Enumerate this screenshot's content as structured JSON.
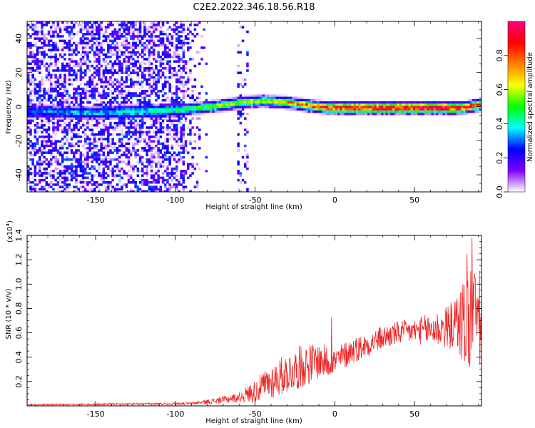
{
  "page_title": "C2E2.2022.346.18.56.R18",
  "chart_data": [
    {
      "type": "heatmap",
      "xlabel": "Height of straight line (km)",
      "ylabel": "Frequency (Hz)",
      "xlim": [
        -193,
        92
      ],
      "ylim": [
        -50,
        50
      ],
      "x_ticks": [
        -150,
        -100,
        -50,
        0,
        50
      ],
      "y_ticks": [
        -40,
        -20,
        0,
        20,
        40
      ],
      "colorbar": {
        "label": "Normalized spectral amplitude",
        "range": [
          0.0,
          1.0
        ],
        "ticks": [
          0.0,
          0.2,
          0.4,
          0.6,
          0.8
        ],
        "colors": [
          "#ffffff",
          "#7f00ff",
          "#0000ff",
          "#00ffff",
          "#00ff00",
          "#ffff00",
          "#ff8000",
          "#ff0000",
          "#ff0080"
        ]
      },
      "ridge_center": [
        {
          "x": -193,
          "y": -2
        },
        {
          "x": -150,
          "y": -3
        },
        {
          "x": -115,
          "y": -2
        },
        {
          "x": -95,
          "y": -1
        },
        {
          "x": -75,
          "y": 1
        },
        {
          "x": -60,
          "y": 3
        },
        {
          "x": -45,
          "y": 4
        },
        {
          "x": -30,
          "y": 3
        },
        {
          "x": -15,
          "y": 1
        },
        {
          "x": -5,
          "y": 0
        },
        {
          "x": 0,
          "y": 0
        },
        {
          "x": 50,
          "y": 0
        },
        {
          "x": 80,
          "y": 0
        },
        {
          "x": 92,
          "y": 2
        }
      ],
      "ridge_amplitude": [
        {
          "x": -193,
          "a": 0.3
        },
        {
          "x": -150,
          "a": 0.35
        },
        {
          "x": -115,
          "a": 0.4
        },
        {
          "x": -95,
          "a": 0.45
        },
        {
          "x": -80,
          "a": 0.55
        },
        {
          "x": -60,
          "a": 0.6
        },
        {
          "x": -40,
          "a": 0.65
        },
        {
          "x": -20,
          "a": 0.75
        },
        {
          "x": -10,
          "a": 0.85
        },
        {
          "x": 0,
          "a": 0.9
        },
        {
          "x": 50,
          "a": 0.95
        },
        {
          "x": 92,
          "a": 0.9
        }
      ]
    },
    {
      "type": "line",
      "xlabel": "Height of straight line (km)",
      "ylabel": "SNR (10 * v/v)",
      "y_scale_label": "(x10",
      "y_scale_exponent": "4",
      "y_scale_suffix": ")",
      "xlim": [
        -193,
        92
      ],
      "ylim": [
        0.0,
        1.4
      ],
      "x_ticks": [
        -150,
        -100,
        -50,
        0,
        50
      ],
      "y_ticks": [
        0.2,
        0.4,
        0.6,
        0.8,
        1.0,
        1.2,
        1.4
      ],
      "series_color": "#ee2222",
      "trend": [
        {
          "x": -193,
          "y": 0.01
        },
        {
          "x": -120,
          "y": 0.015
        },
        {
          "x": -90,
          "y": 0.02
        },
        {
          "x": -75,
          "y": 0.04
        },
        {
          "x": -60,
          "y": 0.07
        },
        {
          "x": -50,
          "y": 0.12
        },
        {
          "x": -40,
          "y": 0.2
        },
        {
          "x": -30,
          "y": 0.27
        },
        {
          "x": -20,
          "y": 0.33
        },
        {
          "x": -10,
          "y": 0.37
        },
        {
          "x": 0,
          "y": 0.36
        },
        {
          "x": 10,
          "y": 0.45
        },
        {
          "x": 20,
          "y": 0.5
        },
        {
          "x": 30,
          "y": 0.56
        },
        {
          "x": 40,
          "y": 0.6
        },
        {
          "x": 55,
          "y": 0.62
        },
        {
          "x": 70,
          "y": 0.64
        },
        {
          "x": 80,
          "y": 0.7
        },
        {
          "x": 92,
          "y": 0.7
        }
      ],
      "noise_amplitude": [
        {
          "x": -193,
          "a": 0.005
        },
        {
          "x": -90,
          "a": 0.01
        },
        {
          "x": -60,
          "a": 0.04
        },
        {
          "x": -40,
          "a": 0.15
        },
        {
          "x": -20,
          "a": 0.18
        },
        {
          "x": 0,
          "a": 0.12
        },
        {
          "x": 20,
          "a": 0.1
        },
        {
          "x": 50,
          "a": 0.1
        },
        {
          "x": 75,
          "a": 0.2
        },
        {
          "x": 85,
          "a": 0.5
        },
        {
          "x": 92,
          "a": 0.4
        }
      ],
      "peaks": [
        {
          "x": -2,
          "y": 0.73
        },
        {
          "x": 78,
          "y": 0.85
        },
        {
          "x": 83,
          "y": 1.25
        },
        {
          "x": 86,
          "y": 1.38
        },
        {
          "x": 88,
          "y": 1.05
        }
      ]
    }
  ]
}
